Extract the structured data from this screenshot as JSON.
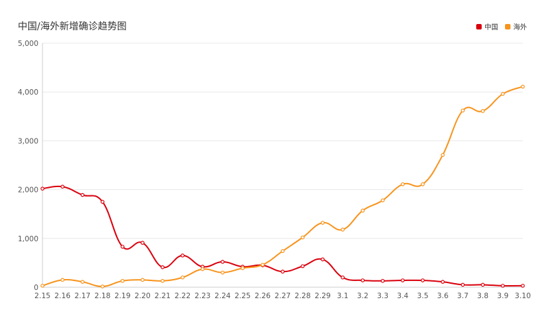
{
  "chart_data": {
    "type": "line",
    "title": "中国/海外新增确诊趋势图",
    "categories": [
      "2.15",
      "2.16",
      "2.17",
      "2.18",
      "2.19",
      "2.20",
      "2.21",
      "2.22",
      "2.23",
      "2.24",
      "2.25",
      "2.26",
      "2.27",
      "2.28",
      "2.29",
      "3.1",
      "3.2",
      "3.3",
      "3.4",
      "3.5",
      "3.6",
      "3.7",
      "3.8",
      "3.9",
      "3.10"
    ],
    "ylim": [
      0,
      5000
    ],
    "yticks": [
      "0",
      "1,000",
      "2,000",
      "3,000",
      "4,000",
      "5,000"
    ],
    "grid": true,
    "legend_position": "top-right",
    "series": [
      {
        "name": "中国",
        "color": "#d9000d",
        "values": [
          2020,
          2060,
          1890,
          1750,
          830,
          910,
          410,
          650,
          420,
          520,
          420,
          450,
          320,
          430,
          570,
          200,
          140,
          130,
          140,
          140,
          110,
          50,
          50,
          30,
          30
        ]
      },
      {
        "name": "海外",
        "color": "#f7941d",
        "values": [
          30,
          150,
          110,
          15,
          130,
          150,
          130,
          200,
          370,
          300,
          390,
          460,
          740,
          1020,
          1320,
          1180,
          1570,
          1780,
          2110,
          2110,
          2710,
          3620,
          3610,
          3960,
          4110
        ]
      }
    ]
  }
}
